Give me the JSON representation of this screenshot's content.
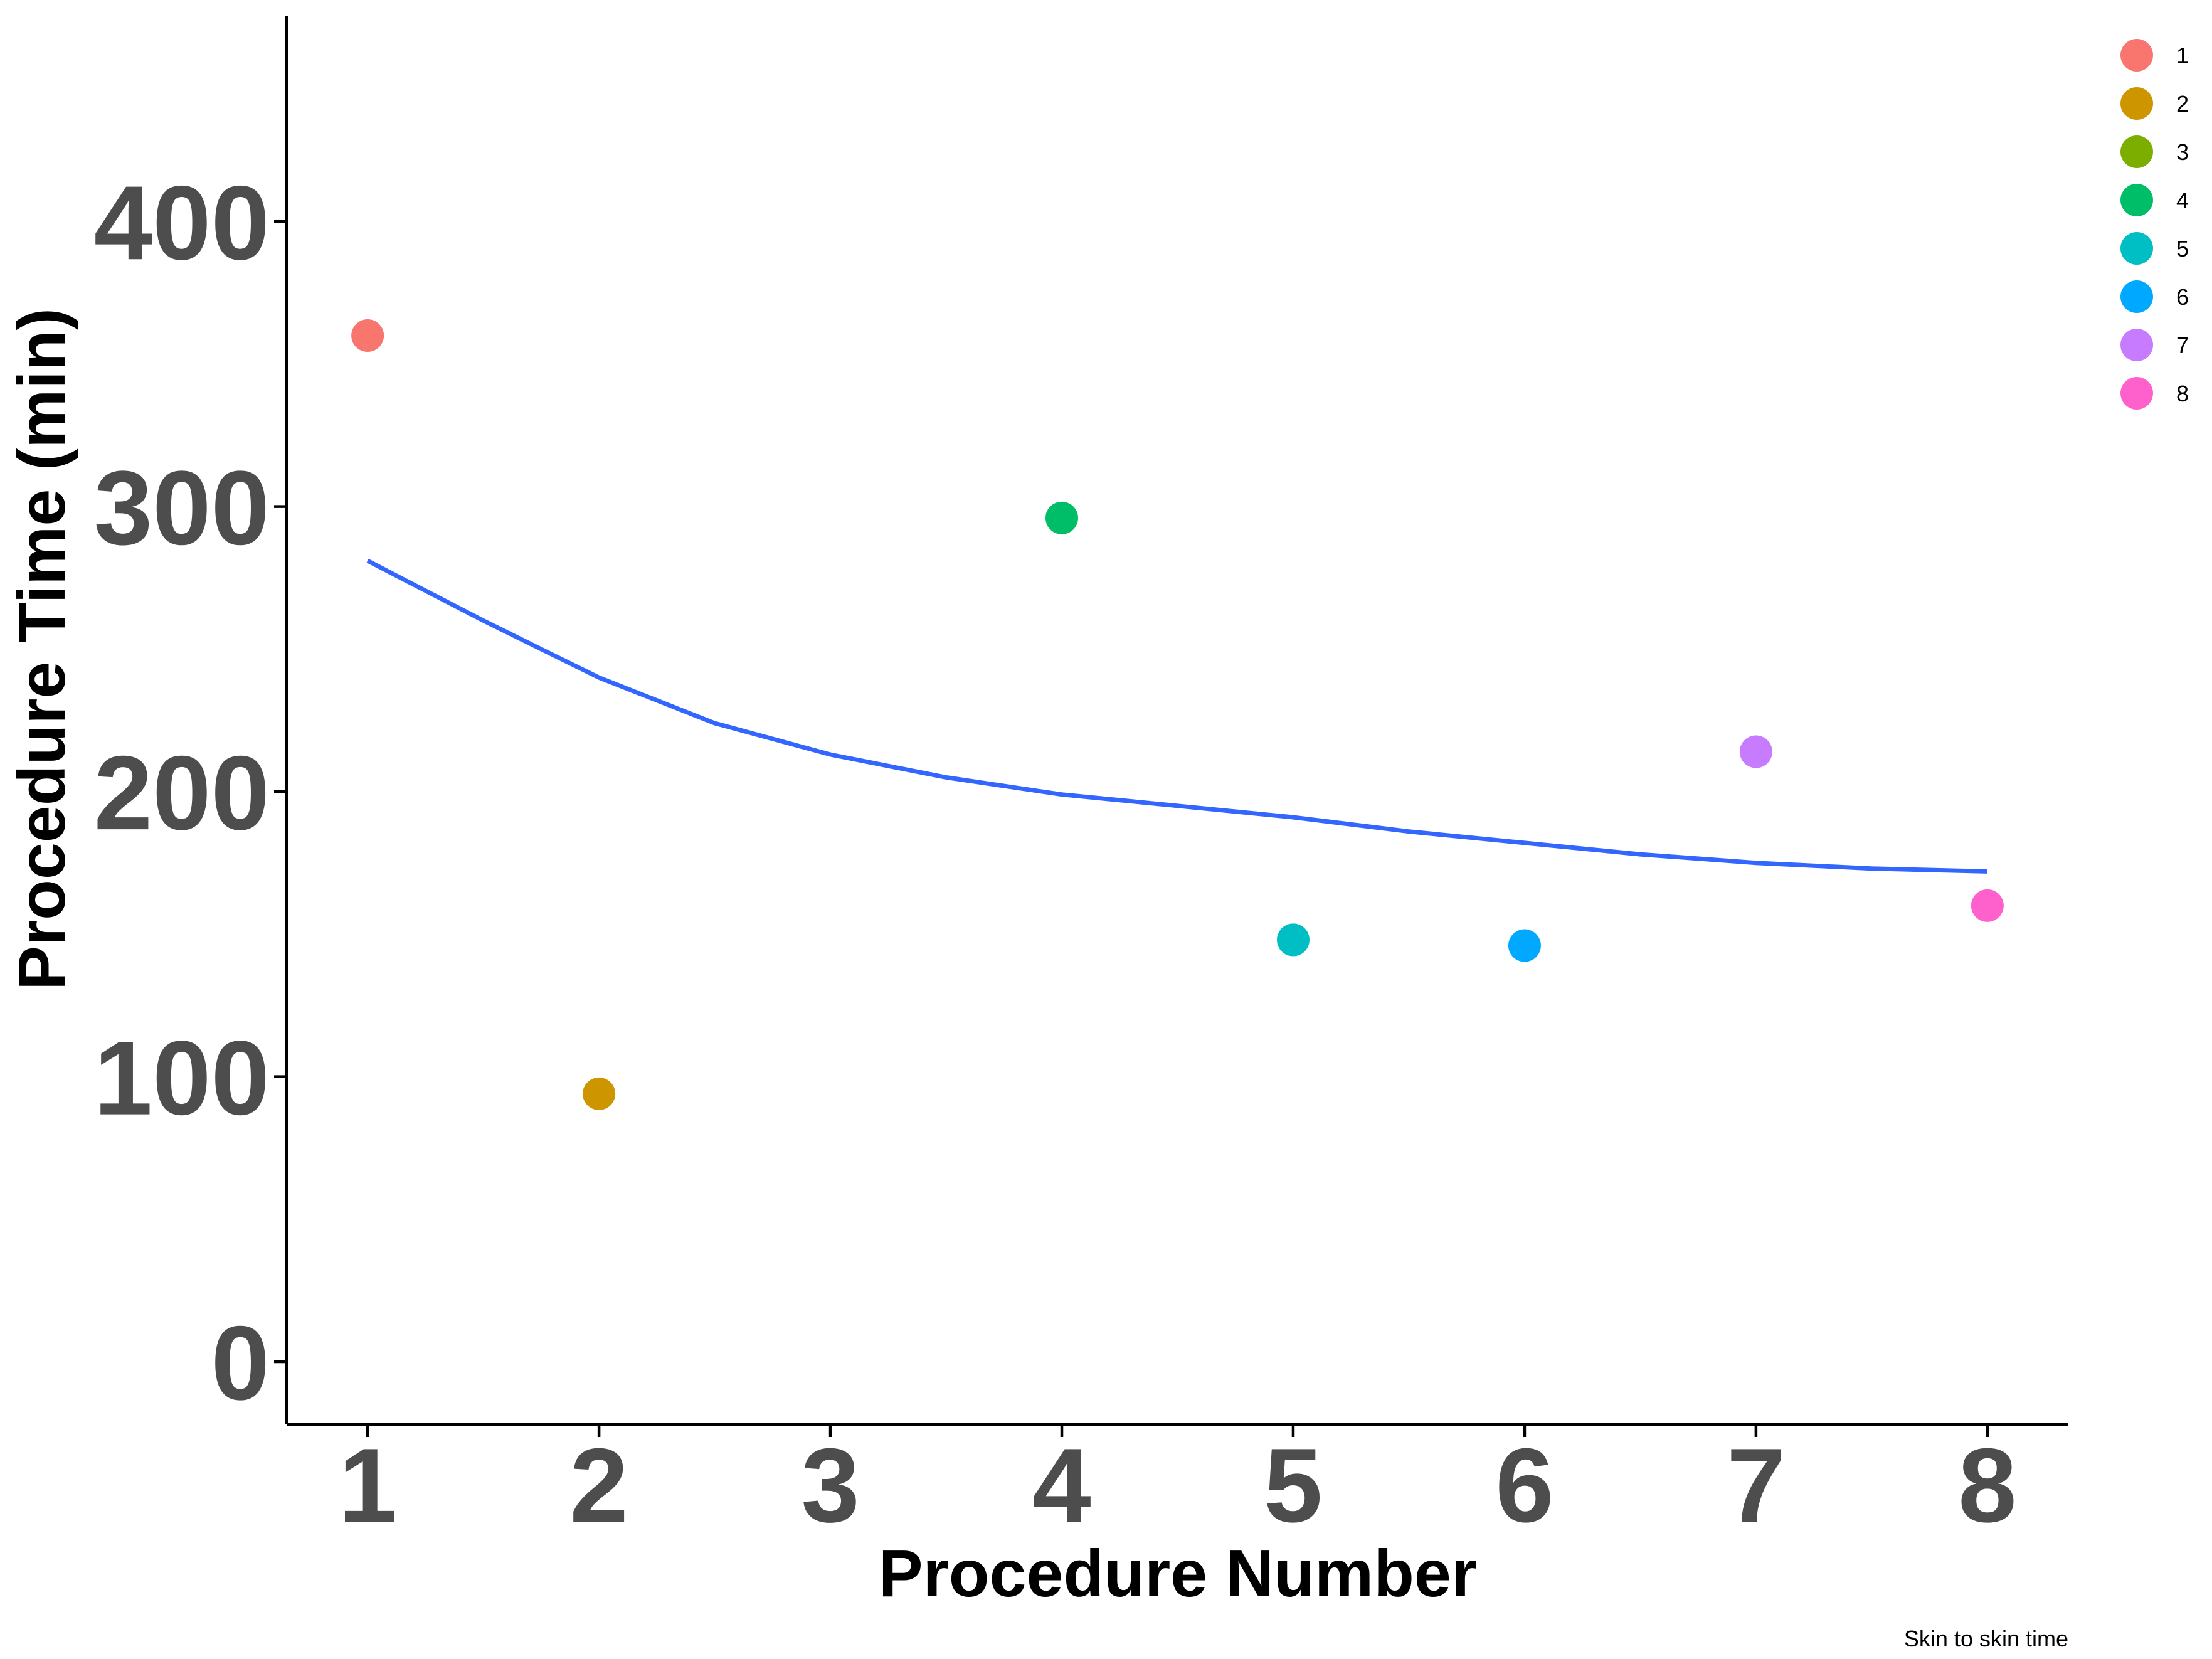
{
  "chart_data": {
    "type": "scatter",
    "title": "",
    "xlabel": "Procedure Number",
    "ylabel": "Procedure Time (min)",
    "caption": "Skin to skin time",
    "xlim": [
      0.65,
      8.35
    ],
    "ylim": [
      -22,
      472
    ],
    "x_ticks": [
      1,
      2,
      3,
      4,
      5,
      6,
      7,
      8
    ],
    "y_ticks": [
      0,
      100,
      200,
      300,
      400
    ],
    "grid": false,
    "legend_position": "right",
    "points": [
      {
        "label": "1",
        "x": 1,
        "y": 360,
        "color": "#F8766D"
      },
      {
        "label": "2",
        "x": 2,
        "y": 94,
        "color": "#CD9600"
      },
      {
        "label": "4",
        "x": 4,
        "y": 296,
        "color": "#00BE67"
      },
      {
        "label": "5",
        "x": 5,
        "y": 148,
        "color": "#00BFC4"
      },
      {
        "label": "6",
        "x": 6,
        "y": 146,
        "color": "#00A9FF"
      },
      {
        "label": "7",
        "x": 7,
        "y": 214,
        "color": "#C77CFF"
      },
      {
        "label": "8",
        "x": 8,
        "y": 160,
        "color": "#FF61CC"
      }
    ],
    "legend": [
      {
        "label": "1",
        "color": "#F8766D"
      },
      {
        "label": "2",
        "color": "#CD9600"
      },
      {
        "label": "3",
        "color": "#7CAE00"
      },
      {
        "label": "4",
        "color": "#00BE67"
      },
      {
        "label": "5",
        "color": "#00BFC4"
      },
      {
        "label": "6",
        "color": "#00A9FF"
      },
      {
        "label": "7",
        "color": "#C77CFF"
      },
      {
        "label": "8",
        "color": "#FF61CC"
      }
    ],
    "trend_line": {
      "color": "#3366FF",
      "x": [
        1,
        1.5,
        2,
        2.5,
        3,
        3.5,
        4,
        4.5,
        5,
        5.5,
        6,
        6.5,
        7,
        7.5,
        8
      ],
      "y": [
        281,
        260,
        240,
        224,
        213,
        205,
        199,
        195,
        191,
        186,
        182,
        178,
        175,
        173,
        172
      ]
    }
  }
}
